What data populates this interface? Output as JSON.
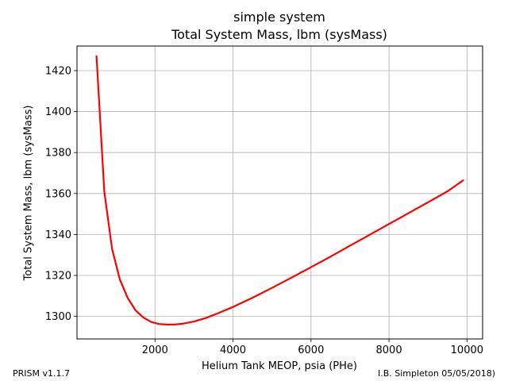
{
  "header": {
    "title_line1": "simple system",
    "title_line2": "Total System Mass, lbm (sysMass)"
  },
  "footer": {
    "left": "PRISM v1.1.7",
    "right": "I.B. Simpleton 05/05/2018)"
  },
  "chart_data": {
    "type": "line",
    "title": "simple system\nTotal System Mass, lbm (sysMass)",
    "xlabel": "Helium Tank MEOP, psia (PHe)",
    "ylabel": "Total System Mass, lbm (sysMass)",
    "xlim": [
      0,
      10400
    ],
    "ylim": [
      1289,
      1432
    ],
    "xticks": [
      2000,
      4000,
      6000,
      8000,
      10000
    ],
    "yticks": [
      1300,
      1320,
      1340,
      1360,
      1380,
      1400,
      1420
    ],
    "grid": true,
    "series": [
      {
        "color": "#ff0000",
        "x": [
          500,
          700,
          900,
          1100,
          1300,
          1500,
          1700,
          1900,
          2100,
          2300,
          2500,
          2700,
          3000,
          3300,
          3600,
          4000,
          4500,
          5000,
          5500,
          6000,
          6500,
          7000,
          7500,
          8000,
          8500,
          9000,
          9500,
          9900
        ],
        "y": [
          1427,
          1361,
          1333,
          1318,
          1309,
          1303,
          1299.5,
          1297.3,
          1296.3,
          1296,
          1296,
          1296.4,
          1297.5,
          1299.2,
          1301.4,
          1304.6,
          1309.1,
          1313.9,
          1318.9,
          1324,
          1329.2,
          1334.5,
          1339.8,
          1345.1,
          1350.4,
          1355.7,
          1361.1,
          1366.4
        ]
      }
    ]
  }
}
